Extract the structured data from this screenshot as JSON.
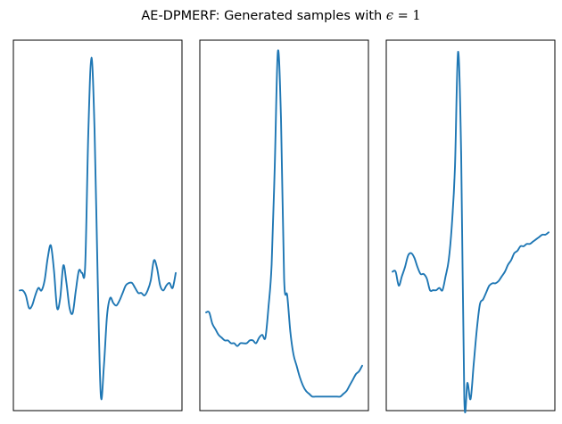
{
  "figure": {
    "title": {
      "prefix": "AE-DPMERF: Generated samples with ",
      "symbol": "ϵ",
      "equals": " = ",
      "value": "1"
    }
  },
  "colors": {
    "line": "#1f77b4",
    "axes": "#000000",
    "background": "#ffffff"
  },
  "chart_data": [
    {
      "type": "line",
      "title": "",
      "xlabel": "",
      "ylabel": "",
      "axis_ticks": "hidden",
      "grid": false,
      "legend": "none",
      "xlim": [
        -2,
        52
      ],
      "ylim": [
        -0.48,
        1.0
      ],
      "x": [
        0,
        1,
        2,
        3,
        4,
        5,
        6,
        7,
        8,
        9,
        10,
        11,
        12,
        13,
        14,
        15,
        16,
        17,
        18,
        19,
        20,
        21,
        22,
        23,
        24,
        25,
        26,
        27,
        28,
        29,
        30,
        31,
        32,
        33,
        34,
        35,
        36,
        37,
        38,
        39,
        40,
        41,
        42,
        43,
        44,
        45,
        46,
        47,
        48,
        49,
        50
      ],
      "values": [
        0.0,
        0.0,
        -0.02,
        -0.07,
        -0.06,
        -0.02,
        0.01,
        0.0,
        0.04,
        0.13,
        0.18,
        0.08,
        -0.07,
        -0.03,
        0.1,
        0.03,
        -0.07,
        -0.09,
        0.0,
        0.08,
        0.07,
        0.1,
        0.63,
        0.93,
        0.64,
        0.05,
        -0.42,
        -0.3,
        -0.1,
        -0.03,
        -0.05,
        -0.06,
        -0.04,
        -0.01,
        0.02,
        0.03,
        0.03,
        0.01,
        -0.01,
        -0.01,
        -0.02,
        0.0,
        0.04,
        0.12,
        0.09,
        0.02,
        0.0,
        0.02,
        0.03,
        0.01,
        0.07
      ]
    },
    {
      "type": "line",
      "title": "",
      "xlabel": "",
      "ylabel": "",
      "axis_ticks": "hidden",
      "grid": false,
      "legend": "none",
      "xlim": [
        -2,
        52
      ],
      "ylim": [
        -0.32,
        1.0
      ],
      "x": [
        0,
        1,
        2,
        3,
        4,
        5,
        6,
        7,
        8,
        9,
        10,
        11,
        12,
        13,
        14,
        15,
        16,
        17,
        18,
        19,
        20,
        21,
        22,
        23,
        24,
        25,
        26,
        27,
        28,
        29,
        30,
        31,
        32,
        33,
        34,
        35,
        36,
        37,
        38,
        39,
        40,
        41,
        42,
        43,
        44,
        45,
        46,
        47,
        48,
        49,
        50
      ],
      "values": [
        0.03,
        0.03,
        -0.01,
        -0.03,
        -0.05,
        -0.06,
        -0.07,
        -0.07,
        -0.08,
        -0.08,
        -0.09,
        -0.08,
        -0.08,
        -0.08,
        -0.07,
        -0.07,
        -0.08,
        -0.06,
        -0.05,
        -0.06,
        0.05,
        0.2,
        0.55,
        0.96,
        0.72,
        0.15,
        0.09,
        -0.04,
        -0.12,
        -0.16,
        -0.2,
        -0.23,
        -0.25,
        -0.26,
        -0.27,
        -0.27,
        -0.27,
        -0.27,
        -0.27,
        -0.27,
        -0.27,
        -0.27,
        -0.27,
        -0.27,
        -0.26,
        -0.25,
        -0.23,
        -0.21,
        -0.19,
        -0.18,
        -0.16
      ]
    },
    {
      "type": "line",
      "title": "",
      "xlabel": "",
      "ylabel": "",
      "axis_ticks": "hidden",
      "grid": false,
      "legend": "none",
      "xlim": [
        -2,
        52
      ],
      "ylim": [
        -0.6,
        1.0
      ],
      "x": [
        0,
        1,
        2,
        3,
        4,
        5,
        6,
        7,
        8,
        9,
        10,
        11,
        12,
        13,
        14,
        15,
        16,
        17,
        18,
        19,
        20,
        21,
        22,
        23,
        24,
        25,
        26,
        27,
        28,
        29,
        30,
        31,
        32,
        33,
        34,
        35,
        36,
        37,
        38,
        39,
        40,
        41,
        42,
        43,
        44,
        45,
        46,
        47,
        48,
        49,
        50
      ],
      "values": [
        0.0,
        0.0,
        -0.06,
        -0.02,
        0.02,
        0.07,
        0.08,
        0.06,
        0.02,
        -0.01,
        -0.01,
        -0.03,
        -0.08,
        -0.08,
        -0.08,
        -0.07,
        -0.08,
        -0.02,
        0.05,
        0.2,
        0.45,
        0.95,
        0.5,
        -0.55,
        -0.48,
        -0.55,
        -0.4,
        -0.25,
        -0.14,
        -0.12,
        -0.09,
        -0.06,
        -0.05,
        -0.05,
        -0.04,
        -0.02,
        0.0,
        0.03,
        0.05,
        0.08,
        0.09,
        0.11,
        0.11,
        0.12,
        0.12,
        0.13,
        0.14,
        0.15,
        0.16,
        0.16,
        0.17
      ]
    }
  ]
}
